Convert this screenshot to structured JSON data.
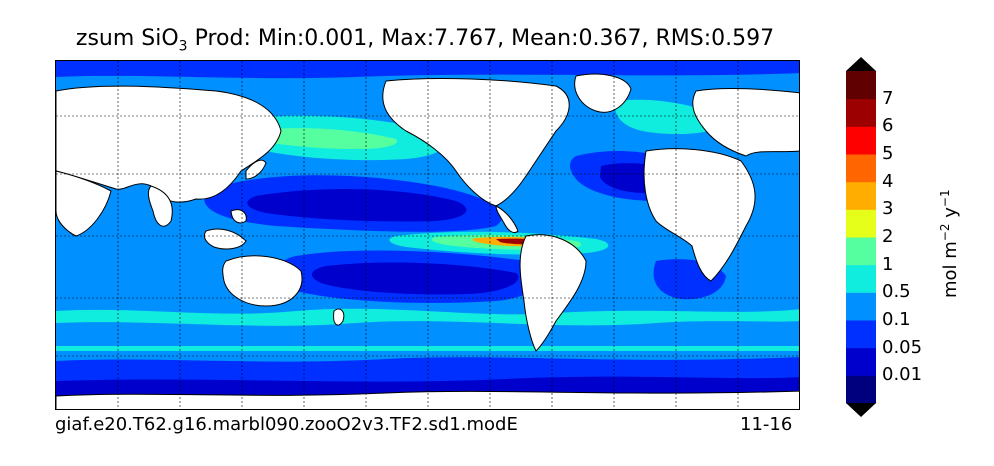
{
  "title": {
    "prefix": "zsum SiO",
    "subscript": "3",
    "rest": " Prod: Min:0.001, Max:7.767, Mean:0.367, RMS:0.597"
  },
  "footer": {
    "case_name": "giaf.e20.T62.g16.marbl090.zooO2v3.TF2.sd1.modE",
    "period": "11-16"
  },
  "colorbar": {
    "unit_base": "mol m",
    "unit_exp1": "−2",
    "unit_mid": " y",
    "unit_exp2": "−1",
    "levels": [
      "0.01",
      "0.05",
      "0.1",
      "0.5",
      "1",
      "2",
      "3",
      "4",
      "5",
      "6",
      "7"
    ],
    "colors": [
      "#00007f",
      "#0000cd",
      "#0030ff",
      "#0090ff",
      "#10ecde",
      "#55ff9f",
      "#e5ff1a",
      "#ffad00",
      "#ff6500",
      "#ff0000",
      "#9d0000",
      "#600000"
    ]
  }
}
